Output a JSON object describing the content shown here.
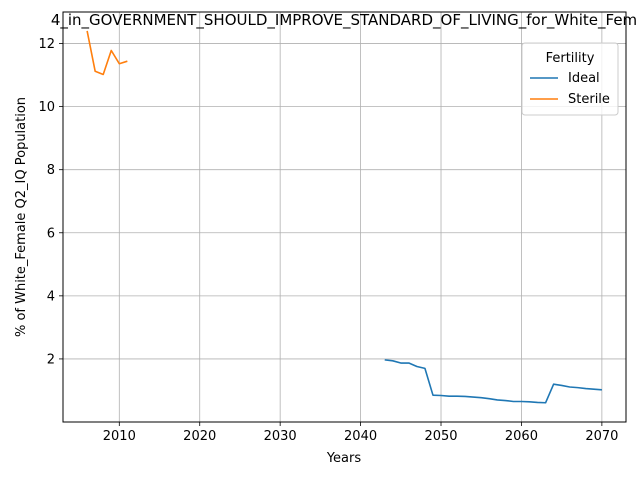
{
  "chart_data": {
    "type": "line",
    "title": "4_in_GOVERNMENT_SHOULD_IMPROVE_STANDARD_OF_LIVING_for_White_Fem",
    "xlabel": "Years",
    "ylabel": "% of White_Female Q2_IQ Population",
    "xlim": [
      2003,
      2073
    ],
    "ylim": [
      0,
      13
    ],
    "xticks": [
      2010,
      2020,
      2030,
      2040,
      2050,
      2060,
      2070
    ],
    "yticks": [
      2,
      4,
      6,
      8,
      10,
      12
    ],
    "grid": true,
    "legend": {
      "title": "Fertility",
      "placement": "top-right"
    },
    "series": [
      {
        "name": "Ideal",
        "color": "#1f77b4",
        "x": [
          2043,
          2044,
          2045,
          2046,
          2047,
          2048,
          2049,
          2050,
          2051,
          2052,
          2053,
          2054,
          2055,
          2056,
          2057,
          2058,
          2059,
          2060,
          2061,
          2062,
          2063,
          2064,
          2065,
          2066,
          2067,
          2068,
          2069,
          2070
        ],
        "y": [
          1.97,
          1.94,
          1.87,
          1.87,
          1.76,
          1.7,
          0.85,
          0.84,
          0.82,
          0.82,
          0.81,
          0.79,
          0.77,
          0.74,
          0.7,
          0.68,
          0.65,
          0.65,
          0.64,
          0.62,
          0.61,
          1.2,
          1.16,
          1.11,
          1.09,
          1.06,
          1.04,
          1.02
        ]
      },
      {
        "name": "Sterile",
        "color": "#ff7f0e",
        "x": [
          2006,
          2007,
          2008,
          2009,
          2010,
          2011
        ],
        "y": [
          12.4,
          11.12,
          11.02,
          11.78,
          11.36,
          11.44
        ]
      }
    ]
  }
}
